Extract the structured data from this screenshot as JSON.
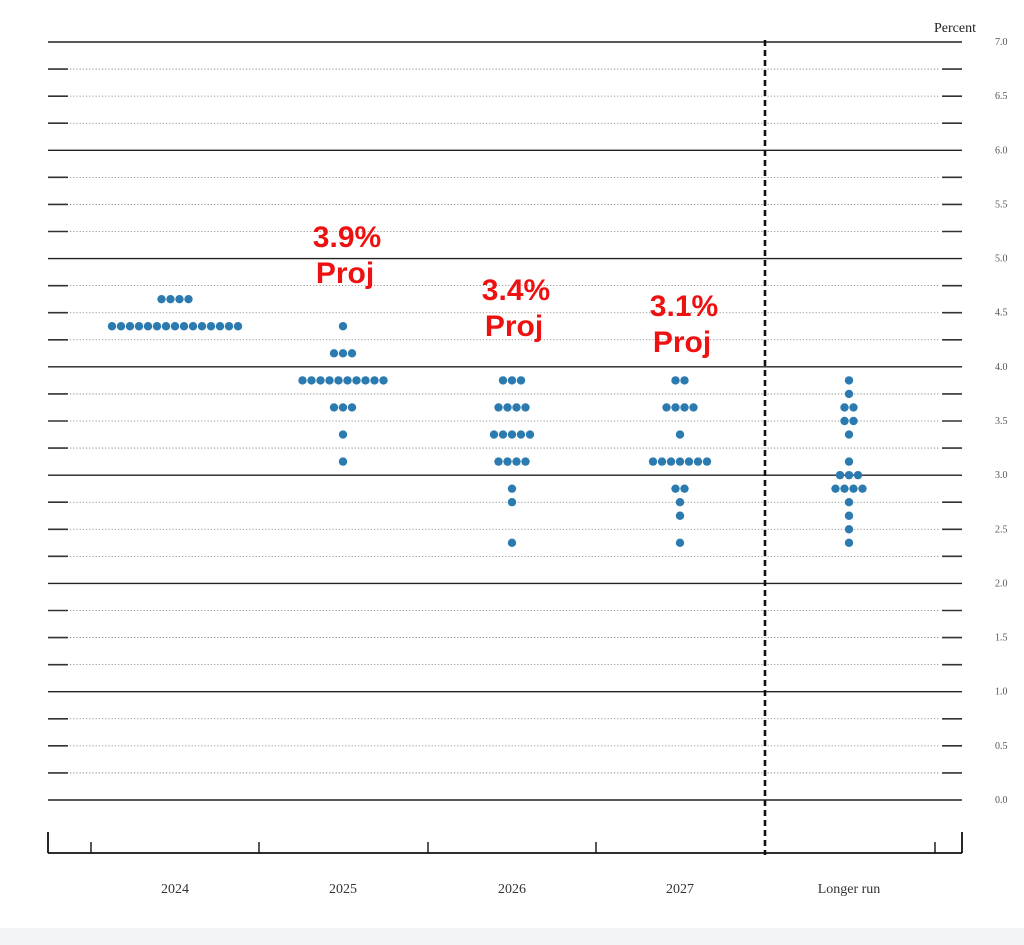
{
  "chart_data": {
    "type": "scatter",
    "ylabel": "Percent",
    "ylim": [
      0.0,
      7.0
    ],
    "yticks": [
      "0.0",
      "0.5",
      "1.0",
      "1.5",
      "2.0",
      "2.5",
      "3.0",
      "3.5",
      "4.0",
      "4.5",
      "5.0",
      "5.5",
      "6.0",
      "6.5",
      "7.0"
    ],
    "categories": [
      "2024",
      "2025",
      "2026",
      "2027",
      "Longer run"
    ],
    "dots": [
      {
        "category": "2024",
        "rows": [
          {
            "y": 4.625,
            "count": 4
          },
          {
            "y": 4.375,
            "count": 15
          }
        ]
      },
      {
        "category": "2025",
        "rows": [
          {
            "y": 4.375,
            "count": 1
          },
          {
            "y": 4.125,
            "count": 3
          },
          {
            "y": 3.875,
            "count": 10
          },
          {
            "y": 3.625,
            "count": 3
          },
          {
            "y": 3.375,
            "count": 1
          },
          {
            "y": 3.125,
            "count": 1
          }
        ]
      },
      {
        "category": "2026",
        "rows": [
          {
            "y": 3.875,
            "count": 3
          },
          {
            "y": 3.625,
            "count": 4
          },
          {
            "y": 3.375,
            "count": 5
          },
          {
            "y": 3.125,
            "count": 4
          },
          {
            "y": 2.875,
            "count": 1
          },
          {
            "y": 2.75,
            "count": 1
          },
          {
            "y": 2.375,
            "count": 1
          }
        ]
      },
      {
        "category": "2027",
        "rows": [
          {
            "y": 3.875,
            "count": 2
          },
          {
            "y": 3.625,
            "count": 4
          },
          {
            "y": 3.375,
            "count": 1
          },
          {
            "y": 3.125,
            "count": 7
          },
          {
            "y": 2.875,
            "count": 2
          },
          {
            "y": 2.75,
            "count": 1
          },
          {
            "y": 2.625,
            "count": 1
          },
          {
            "y": 2.375,
            "count": 1
          }
        ]
      },
      {
        "category": "Longer run",
        "rows": [
          {
            "y": 3.875,
            "count": 1
          },
          {
            "y": 3.75,
            "count": 1
          },
          {
            "y": 3.625,
            "count": 2
          },
          {
            "y": 3.5,
            "count": 2
          },
          {
            "y": 3.375,
            "count": 1
          },
          {
            "y": 3.125,
            "count": 1
          },
          {
            "y": 3.0,
            "count": 3
          },
          {
            "y": 2.875,
            "count": 4
          },
          {
            "y": 2.75,
            "count": 1
          },
          {
            "y": 2.625,
            "count": 1
          },
          {
            "y": 2.5,
            "count": 1
          },
          {
            "y": 2.375,
            "count": 1
          }
        ]
      }
    ],
    "annotations": [
      {
        "category": "2025",
        "value": "3.9%",
        "label": "Proj"
      },
      {
        "category": "2026",
        "value": "3.4%",
        "label": "Proj"
      },
      {
        "category": "2027",
        "value": "3.1%",
        "label": "Proj"
      }
    ],
    "grid": true,
    "dot_color": "#2b7bb0",
    "annotation_color": "#ee1111"
  }
}
